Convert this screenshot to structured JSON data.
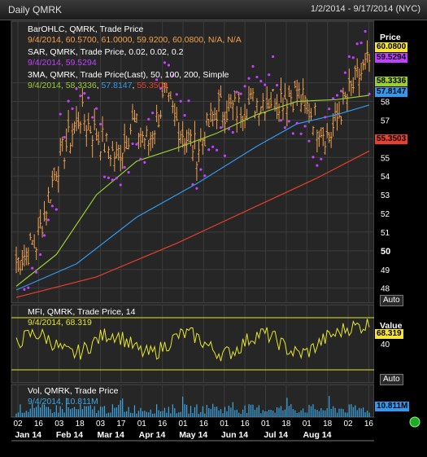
{
  "header": {
    "title": "Daily QMRK",
    "range": "1/2/2014 - 9/17/2014 (NYC)"
  },
  "colors": {
    "bg": "#000000",
    "panel_bg": "#262626",
    "grid": "#3c3c3c",
    "bar": "#f2a24a",
    "sar": "#c040ff",
    "ma50": "#9acd32",
    "ma100": "#2f9bf0",
    "ma200": "#e8402a",
    "mfi": "#e6e62a",
    "vol": "#3aa8e8"
  },
  "price_panel": {
    "legend": {
      "bar_title": "BarOHLC, QMRK, Trade Price",
      "bar_values": "9/4/2014, 60.5700, 61.0000, 59.9200, 60.0800, N/A, N/A",
      "sar_title": "SAR, QMRK, Trade Price,  0.02, 0.02, 0.2",
      "sar_values": "9/4/2014, 59.5294",
      "ma_title": "3MA, QMRK, Trade Price(Last),  50,  100,  200,  Simple",
      "ma_date": "9/4/2014,",
      "ma50_value": "58.3336",
      "ma100_value": "57.8147",
      "ma200_value": "55.3503"
    },
    "axis_title": "Price",
    "auto_label": "Auto",
    "tags": {
      "close": "60.0800",
      "sar": "59.5294",
      "ma50": "58.3336",
      "ma100": "57.8147",
      "ma200": "55.3503"
    }
  },
  "mfi_panel": {
    "legend_title": "MFI, QMRK, Trade Price,  14",
    "legend_values": "9/4/2014, 68.319",
    "axis_title": "Value",
    "tag": "68.319",
    "auto_label": "Auto"
  },
  "vol_panel": {
    "legend_title": "Vol, QMRK, Trade Price",
    "legend_values": "9/4/2014, 10.811M",
    "tag": "10.811M"
  },
  "chart_data": [
    {
      "type": "bar",
      "subtype": "ohlc",
      "ylim": [
        47.2,
        62.3
      ],
      "y_ticks": [
        48,
        49,
        50,
        51,
        52,
        53,
        54,
        55,
        56,
        57,
        58,
        59
      ],
      "series": [
        {
          "name": "BarOHLC",
          "x": [
            "1/2/2014",
            "9/4/2014"
          ],
          "last": [
            60.57,
            61.0,
            59.92,
            60.08
          ]
        },
        {
          "name": "SAR",
          "last": 59.5294
        },
        {
          "name": "MA 50",
          "last": 58.3336
        },
        {
          "name": "MA 100",
          "last": 57.8147
        },
        {
          "name": "MA 200",
          "last": 55.3503
        }
      ]
    },
    {
      "type": "line",
      "name": "MFI 14",
      "ylim": [
        28,
        52
      ],
      "y_ticks": [
        40
      ],
      "reference_lines": [
        48,
        32
      ],
      "last": 68.319
    },
    {
      "type": "bar",
      "name": "Vol",
      "last": "10.811M"
    }
  ],
  "x_axis": {
    "day_ticks": [
      "02",
      "16",
      "03",
      "18",
      "03",
      "17",
      "01",
      "16",
      "01",
      "16",
      "01",
      "16",
      "01",
      "18",
      "01",
      "18",
      "02",
      "16"
    ],
    "month_labels": [
      "Jan 14",
      "Feb 14",
      "Mar 14",
      "Apr 14",
      "May 14",
      "Jun 14",
      "Jul 14",
      "Aug 14"
    ]
  }
}
